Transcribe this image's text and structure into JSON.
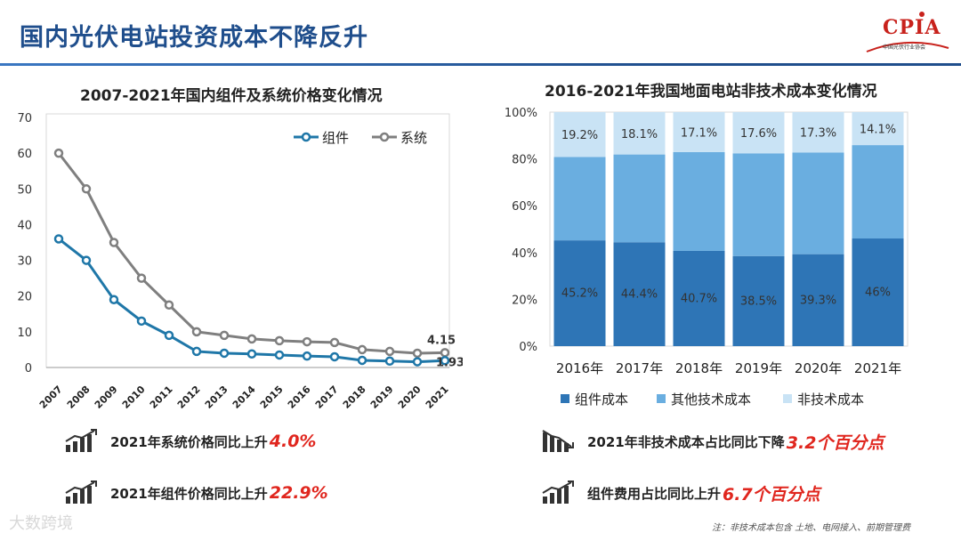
{
  "header": {
    "title": "国内光伏电站投资成本不降反升",
    "logo_text": "CPIA",
    "logo_sub": "中国光伏行业协会"
  },
  "left_chart_title": "2007-2021年国内组件及系统价格变化情况",
  "right_chart_title": "2016-2021年我国地面电站非技术成本变化情况",
  "chart_data": [
    {
      "type": "line",
      "title": "2007-2021年国内组件及系统价格变化情况",
      "x": [
        "2007",
        "2008",
        "2009",
        "2010",
        "2011",
        "2012",
        "2013",
        "2014",
        "2015",
        "2016",
        "2017",
        "2018",
        "2019",
        "2020",
        "2021"
      ],
      "series": [
        {
          "name": "组件",
          "values": [
            36,
            30,
            19,
            13,
            9,
            4.5,
            4,
            3.8,
            3.5,
            3.2,
            3,
            2,
            1.8,
            1.6,
            1.93
          ]
        },
        {
          "name": "系统",
          "values": [
            60,
            50,
            35,
            25,
            17.5,
            10,
            9,
            8,
            7.5,
            7.2,
            7,
            5,
            4.5,
            4,
            4.15
          ]
        }
      ],
      "ylim": [
        0,
        70
      ],
      "yticks": [
        0,
        10,
        20,
        30,
        40,
        50,
        60,
        70
      ],
      "annotations": [
        "4.15",
        "1.93"
      ],
      "legend_position": "top-right",
      "colors": {
        "组件": "#1f77a8",
        "系统": "#7f7f7f"
      }
    },
    {
      "type": "bar",
      "stacked": true,
      "title": "2016-2021年我国地面电站非技术成本变化情况",
      "categories": [
        "2016年",
        "2017年",
        "2018年",
        "2019年",
        "2020年",
        "2021年"
      ],
      "series": [
        {
          "name": "组件成本",
          "values": [
            45.2,
            44.4,
            40.7,
            38.5,
            39.3,
            46
          ],
          "labels": [
            "45.2%",
            "44.4%",
            "40.7%",
            "38.5%",
            "39.3%",
            "46%"
          ]
        },
        {
          "name": "其他技术成本",
          "values": [
            35.6,
            37.5,
            42.2,
            43.9,
            43.4,
            39.9
          ]
        },
        {
          "name": "非技术成本",
          "values": [
            19.2,
            18.1,
            17.1,
            17.6,
            17.3,
            14.1
          ],
          "labels": [
            "19.2%",
            "18.1%",
            "17.1%",
            "17.6%",
            "17.3%",
            "14.1%"
          ]
        }
      ],
      "ylim": [
        0,
        100
      ],
      "yticks": [
        "0%",
        "20%",
        "40%",
        "60%",
        "80%",
        "100%"
      ],
      "legend_position": "bottom",
      "colors": {
        "组件成本": "#2e75b6",
        "其他技术成本": "#6aaee0",
        "非技术成本": "#c9e3f5"
      }
    }
  ],
  "stats": [
    {
      "text": "2021年系统价格同比上升",
      "value": "4.0%",
      "icon": "trend-up-icon"
    },
    {
      "text": "2021年组件价格同比上升",
      "value": "22.9%",
      "icon": "trend-up-icon"
    },
    {
      "text": "2021年非技术成本占比同比下降",
      "value": "3.2个百分点",
      "icon": "trend-down-icon"
    },
    {
      "text": "组件费用占比同比上升",
      "value": "6.7个百分点",
      "icon": "trend-up-icon"
    }
  ],
  "footnote": "注：非技术成本包含 土地、电网接入、前期管理费",
  "watermark": "大数跨境"
}
